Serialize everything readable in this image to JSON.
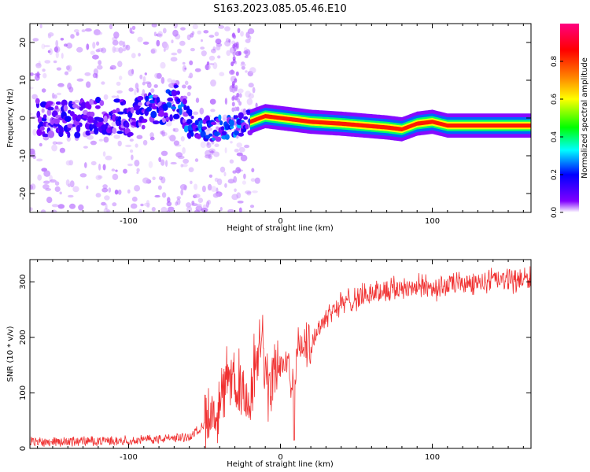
{
  "title": "S163.2023.085.05.46.E10",
  "chart_data": [
    {
      "type": "heatmap",
      "xlabel": "Height of straight line (km)",
      "ylabel": "Frequency (Hz)",
      "xlim": [
        -165,
        165
      ],
      "ylim": [
        -25,
        25
      ],
      "x_ticks": [
        -100,
        0,
        100
      ],
      "y_ticks": [
        -20,
        -10,
        0,
        10,
        20
      ],
      "x_tick_labels": [
        "-100",
        "0",
        "100"
      ],
      "y_tick_labels": [
        "-20",
        "-10",
        "0",
        "10",
        "20"
      ],
      "colorbar": {
        "label": "Normalized spectral amplitude",
        "range": [
          0,
          1
        ],
        "ticks": [
          0,
          0.2,
          0.4,
          0.6,
          0.8
        ],
        "tick_labels": [
          "0.0",
          "0.2",
          "0.4",
          "0.6",
          "0.8"
        ],
        "colors": [
          "#ffffff",
          "#8000ff",
          "#0000ff",
          "#00ffff",
          "#00ff00",
          "#ffff00",
          "#ff8000",
          "#ff0000",
          "#ff0080"
        ]
      },
      "ridge": {
        "x": [
          -160,
          -140,
          -120,
          -100,
          -80,
          -70,
          -60,
          -45,
          -30,
          -20,
          -10,
          0,
          20,
          40,
          55,
          70,
          80,
          90,
          100,
          110,
          140,
          165
        ],
        "y": [
          0,
          -0.5,
          0.5,
          0,
          3,
          5,
          -2,
          -3,
          -2,
          -1,
          0.5,
          0,
          -1,
          -1.5,
          -2,
          -2.5,
          -3,
          -1.5,
          -1,
          -2,
          -2,
          -2
        ]
      }
    },
    {
      "type": "line",
      "xlabel": "Height of straight line (km)",
      "ylabel": "SNR (10 * v/v)",
      "xlim": [
        -165,
        165
      ],
      "ylim": [
        0,
        340
      ],
      "x_ticks": [
        -100,
        0,
        100
      ],
      "y_ticks": [
        0,
        100,
        200,
        300
      ],
      "x_tick_labels": [
        "-100",
        "0",
        "100"
      ],
      "y_tick_labels": [
        "0",
        "100",
        "200",
        "300"
      ],
      "line_color": "#f03030",
      "trend": {
        "x": [
          -165,
          -100,
          -60,
          -45,
          -40,
          -30,
          -25,
          -20,
          -15,
          -12,
          -8,
          -5,
          -3,
          0,
          5,
          9,
          10,
          12,
          15,
          20,
          25,
          30,
          40,
          60,
          80,
          100,
          130,
          165
        ],
        "y": [
          12,
          14,
          20,
          55,
          80,
          130,
          100,
          70,
          150,
          200,
          90,
          130,
          160,
          140,
          170,
          90,
          150,
          190,
          180,
          190,
          215,
          240,
          260,
          280,
          290,
          290,
          300,
          305
        ]
      }
    }
  ]
}
